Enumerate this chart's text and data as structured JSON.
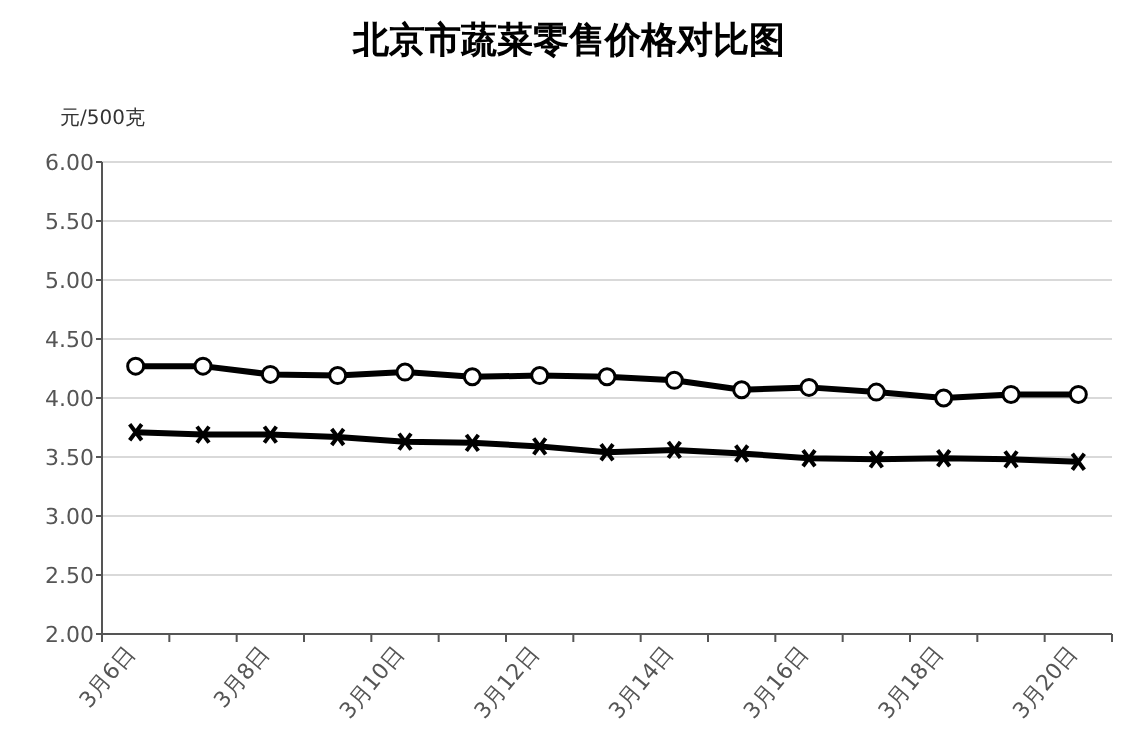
{
  "chart_data": {
    "type": "line",
    "title": "北京市蔬菜零售价格对比图",
    "ylabel": "元/500克",
    "categories": [
      "3月6日",
      null,
      "3月8日",
      null,
      "3月10日",
      null,
      "3月12日",
      null,
      "3月14日",
      null,
      "3月16日",
      null,
      "3月18日",
      null,
      "3月20日"
    ],
    "series": [
      {
        "color": "#000000",
        "marker": "circle",
        "values": [
          4.27,
          4.27,
          4.2,
          4.19,
          4.22,
          4.18,
          4.19,
          4.18,
          4.15,
          4.07,
          4.09,
          4.05,
          4.0,
          4.03,
          4.03
        ]
      },
      {
        "color": "#000000",
        "marker": "cross",
        "values": [
          3.71,
          3.69,
          3.69,
          3.67,
          3.63,
          3.62,
          3.59,
          3.54,
          3.56,
          3.53,
          3.49,
          3.48,
          3.49,
          3.48,
          3.46
        ]
      }
    ],
    "ylim": [
      2,
      6
    ],
    "yticks": [
      {
        "value": 2,
        "label": "2.00"
      },
      {
        "value": 2.5,
        "label": "2.50"
      },
      {
        "value": 3,
        "label": "3.00"
      },
      {
        "value": 3.5,
        "label": "3.50"
      },
      {
        "value": 4,
        "label": "4.00"
      },
      {
        "value": 4.5,
        "label": "4.50"
      },
      {
        "value": 5,
        "label": "5.00"
      },
      {
        "value": 5.5,
        "label": "5.50"
      },
      {
        "value": 6,
        "label": "6.00"
      }
    ],
    "grid": "y",
    "line_style": "solid"
  }
}
